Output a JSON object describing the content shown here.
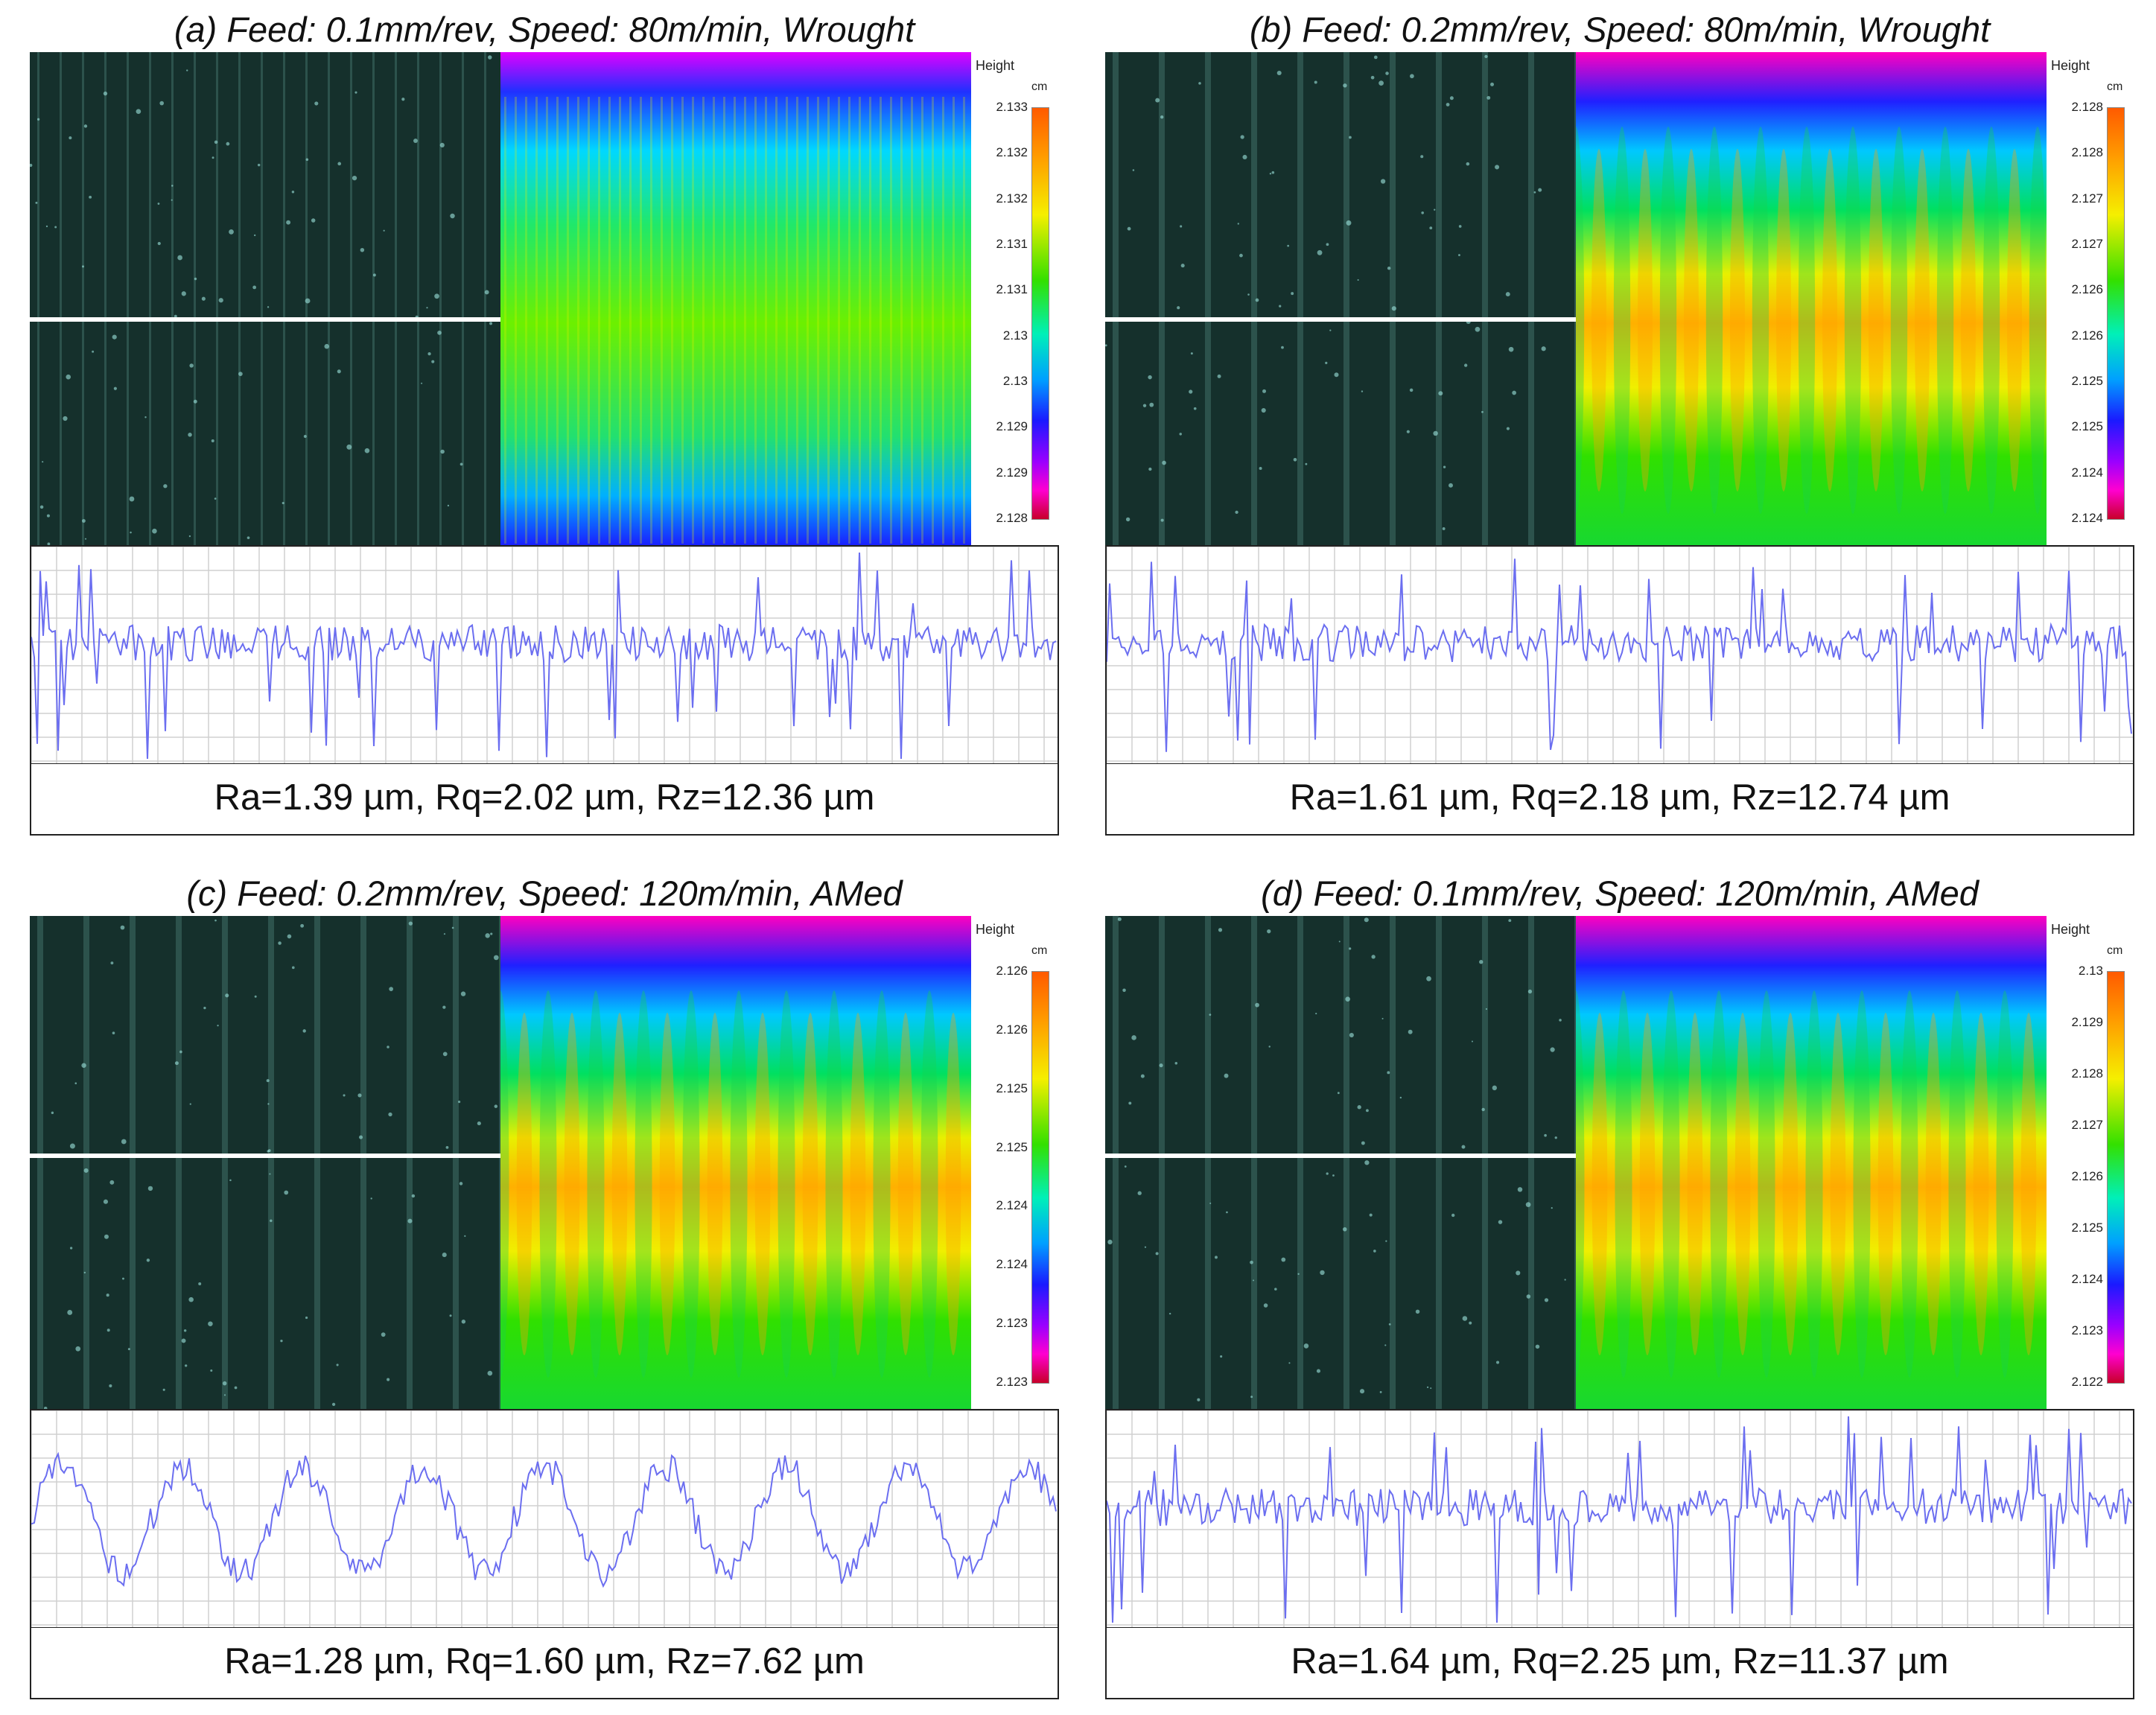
{
  "scale": {
    "title": "Height",
    "unit": "cm"
  },
  "panels": [
    {
      "title": "(a) Feed: 0.1mm/rev, Speed: 80m/min, Wrought",
      "ticks": [
        "2.133",
        "2.132",
        "2.132",
        "2.131",
        "2.131",
        "2.13",
        "2.13",
        "2.129",
        "2.129",
        "2.128"
      ],
      "metrics": "Ra=1.39 µm, Rq=2.02 µm, Rz=12.36 µm",
      "pattern": "flat"
    },
    {
      "title": "(b) Feed: 0.2mm/rev, Speed: 80m/min, Wrought",
      "ticks": [
        "2.128",
        "2.128",
        "2.127",
        "2.127",
        "2.126",
        "2.126",
        "2.125",
        "2.125",
        "2.124",
        "2.124"
      ],
      "metrics": "Ra=1.61 µm, Rq=2.18 µm, Rz=12.74 µm",
      "pattern": "ridges"
    },
    {
      "title": "(c) Feed: 0.2mm/rev, Speed: 120m/min, AMed",
      "ticks": [
        "2.126",
        "2.126",
        "2.125",
        "2.125",
        "2.124",
        "2.124",
        "2.123",
        "2.123"
      ],
      "metrics": "Ra=1.28 µm, Rq=1.60 µm, Rz=7.62 µm",
      "pattern": "ridges"
    },
    {
      "title": "(d) Feed: 0.1mm/rev, Speed: 120m/min, AMed",
      "ticks": [
        "2.13",
        "2.129",
        "2.128",
        "2.127",
        "2.126",
        "2.125",
        "2.124",
        "2.123",
        "2.122"
      ],
      "metrics": "Ra=1.64 µm, Rq=2.25 µm, Rz=11.37 µm",
      "pattern": "ridges"
    }
  ]
}
